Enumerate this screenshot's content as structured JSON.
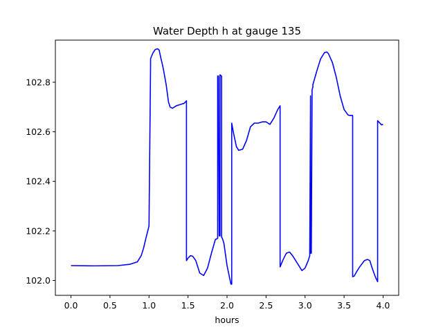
{
  "chart_data": {
    "type": "line",
    "title": "Water Depth h at gauge 135",
    "xlabel": "hours",
    "ylabel": "",
    "xlim": [
      -0.2,
      4.2
    ],
    "ylim": [
      101.94,
      102.97
    ],
    "xticks": [
      0.0,
      0.5,
      1.0,
      1.5,
      2.0,
      2.5,
      3.0,
      3.5,
      4.0
    ],
    "xtick_labels": [
      "0.0",
      "0.5",
      "1.0",
      "1.5",
      "2.0",
      "2.5",
      "3.0",
      "3.5",
      "4.0"
    ],
    "yticks": [
      102.0,
      102.2,
      102.4,
      102.6,
      102.8
    ],
    "ytick_labels": [
      "102.0",
      "102.2",
      "102.4",
      "102.6",
      "102.8"
    ],
    "grid": false,
    "series": [
      {
        "color": "#0000ff",
        "x": [
          0.0,
          0.3,
          0.6,
          0.75,
          0.85,
          0.9,
          0.93,
          0.96,
          1.0,
          1.02,
          1.02,
          1.05,
          1.08,
          1.11,
          1.13,
          1.15,
          1.18,
          1.22,
          1.25,
          1.27,
          1.3,
          1.35,
          1.4,
          1.45,
          1.48,
          1.48,
          1.5,
          1.53,
          1.56,
          1.6,
          1.65,
          1.7,
          1.75,
          1.8,
          1.85,
          1.88,
          1.88,
          1.89,
          1.9,
          1.91,
          1.91,
          1.93,
          1.93,
          1.94,
          1.96,
          2.0,
          2.05,
          2.06,
          2.06,
          2.08,
          2.12,
          2.15,
          2.2,
          2.25,
          2.3,
          2.35,
          2.4,
          2.45,
          2.5,
          2.55,
          2.6,
          2.65,
          2.68,
          2.68,
          2.72,
          2.76,
          2.8,
          2.84,
          2.9,
          2.96,
          3.0,
          3.04,
          3.06,
          3.07,
          3.07,
          3.08,
          3.09,
          3.1,
          3.1,
          3.15,
          3.2,
          3.25,
          3.28,
          3.3,
          3.35,
          3.4,
          3.45,
          3.5,
          3.55,
          3.57,
          3.61,
          3.61,
          3.63,
          3.66,
          3.7,
          3.76,
          3.8,
          3.83,
          3.86,
          3.9,
          3.93,
          3.93,
          3.95,
          3.98,
          4.0
        ],
        "y": [
          102.06,
          102.059,
          102.06,
          102.065,
          102.075,
          102.1,
          102.13,
          102.17,
          102.22,
          102.87,
          102.895,
          102.918,
          102.932,
          102.935,
          102.93,
          102.9,
          102.86,
          102.79,
          102.72,
          102.7,
          102.695,
          102.705,
          102.71,
          102.715,
          102.725,
          102.08,
          102.09,
          102.1,
          102.098,
          102.08,
          102.03,
          102.02,
          102.05,
          102.11,
          102.165,
          102.17,
          102.825,
          102.825,
          102.18,
          102.18,
          102.83,
          102.825,
          102.175,
          102.17,
          102.15,
          102.06,
          101.985,
          101.985,
          102.635,
          102.6,
          102.54,
          102.525,
          102.53,
          102.565,
          102.62,
          102.635,
          102.635,
          102.64,
          102.64,
          102.63,
          102.655,
          102.69,
          102.705,
          102.055,
          102.085,
          102.11,
          102.115,
          102.1,
          102.07,
          102.04,
          102.05,
          102.08,
          102.1,
          102.745,
          102.11,
          102.11,
          102.77,
          102.78,
          102.79,
          102.845,
          102.895,
          102.92,
          102.922,
          102.915,
          102.88,
          102.82,
          102.745,
          102.69,
          102.668,
          102.666,
          102.666,
          102.015,
          102.018,
          102.035,
          102.055,
          102.08,
          102.085,
          102.08,
          102.05,
          102.015,
          101.995,
          102.645,
          102.638,
          102.628,
          102.63
        ]
      }
    ]
  }
}
